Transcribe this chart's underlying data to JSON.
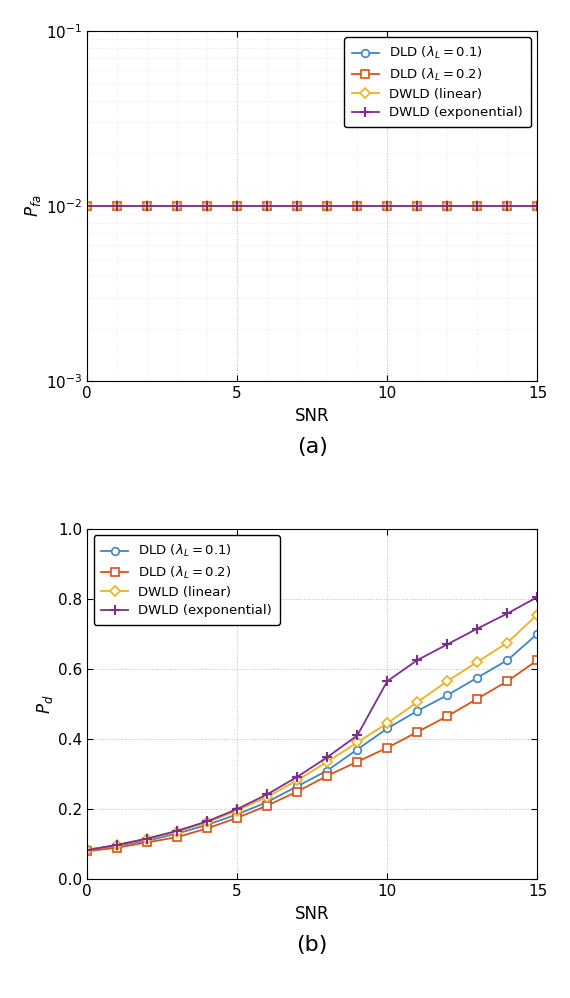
{
  "snr": [
    0,
    1,
    2,
    3,
    4,
    5,
    6,
    7,
    8,
    9,
    10,
    11,
    12,
    13,
    14,
    15
  ],
  "pfa_dld01": [
    0.01,
    0.01,
    0.01,
    0.01,
    0.01,
    0.01,
    0.01,
    0.01,
    0.01,
    0.01,
    0.01,
    0.01,
    0.01,
    0.01,
    0.01,
    0.01
  ],
  "pfa_dld02": [
    0.01,
    0.01,
    0.01,
    0.01,
    0.01,
    0.01,
    0.01,
    0.01,
    0.01,
    0.01,
    0.01,
    0.01,
    0.01,
    0.01,
    0.01,
    0.01
  ],
  "pfa_dwld_lin": [
    0.01,
    0.01,
    0.01,
    0.01,
    0.01,
    0.01,
    0.01,
    0.01,
    0.01,
    0.01,
    0.01,
    0.01,
    0.01,
    0.01,
    0.01,
    0.01
  ],
  "pfa_dwld_exp": [
    0.01,
    0.01,
    0.01,
    0.01,
    0.01,
    0.01,
    0.01,
    0.01,
    0.01,
    0.01,
    0.01,
    0.01,
    0.01,
    0.01,
    0.01,
    0.01
  ],
  "pd_dld01": [
    0.085,
    0.095,
    0.11,
    0.13,
    0.155,
    0.185,
    0.22,
    0.265,
    0.31,
    0.37,
    0.43,
    0.48,
    0.525,
    0.575,
    0.625,
    0.7
  ],
  "pd_dld02": [
    0.08,
    0.09,
    0.105,
    0.12,
    0.145,
    0.175,
    0.21,
    0.25,
    0.295,
    0.335,
    0.375,
    0.42,
    0.465,
    0.515,
    0.565,
    0.625
  ],
  "pd_dwld_lin": [
    0.083,
    0.098,
    0.115,
    0.135,
    0.162,
    0.196,
    0.235,
    0.282,
    0.335,
    0.39,
    0.445,
    0.505,
    0.565,
    0.62,
    0.675,
    0.755
  ],
  "pd_dwld_exp": [
    0.083,
    0.098,
    0.116,
    0.138,
    0.165,
    0.2,
    0.242,
    0.292,
    0.348,
    0.41,
    0.565,
    0.625,
    0.67,
    0.715,
    0.758,
    0.805
  ],
  "color_dld01": "#3F85C8",
  "color_dld02": "#D95319",
  "color_dwld_lin": "#EDB120",
  "color_dwld_exp": "#7E2F8E",
  "label_dld01": "DLD ($\\lambda_L = 0.1$)",
  "label_dld02": "DLD ($\\lambda_L = 0.2$)",
  "label_dwld_lin": "DWLD (linear)",
  "label_dwld_exp": "DWLD (exponential)",
  "xlabel": "SNR",
  "ylabel_a": "$P_{fa}$",
  "ylabel_b": "$P_d$",
  "caption_a": "(a)",
  "caption_b": "(b)",
  "xlim": [
    0,
    15
  ],
  "ylim_b": [
    0,
    1
  ]
}
